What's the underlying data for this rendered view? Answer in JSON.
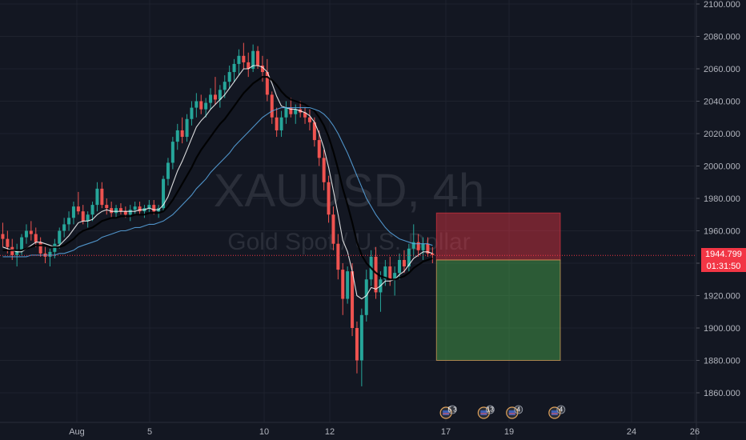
{
  "chart_data": {
    "type": "candlestick",
    "watermark": {
      "symbol": "XAUUSD, 4h",
      "description": "Gold Spot / U.S. Dollar"
    },
    "price_axis": {
      "ylim": [
        1840,
        2100
      ],
      "ticks": [
        1860,
        1880,
        1900,
        1920,
        1940,
        1960,
        1980,
        2000,
        2020,
        2040,
        2060,
        2080,
        2100
      ],
      "tick_labels": [
        "1860.000",
        "1880.000",
        "1900.000",
        "1920.000",
        "1940.000",
        "1960.000",
        "1980.000",
        "2000.000",
        "2020.000",
        "2040.000",
        "2060.000",
        "2080.000",
        "2100.000"
      ]
    },
    "time_axis": {
      "ticks": [
        {
          "x": 4,
          "label": "Aug"
        },
        {
          "x": 5,
          "label": "5"
        },
        {
          "x": 10,
          "label": "10"
        },
        {
          "x": 12,
          "label": "12"
        },
        {
          "x": 17,
          "label": "17"
        },
        {
          "x": 19,
          "label": "19"
        },
        {
          "x": 24,
          "label": "24"
        },
        {
          "x": 26,
          "label": "26"
        }
      ]
    },
    "current_price": {
      "value": 1944.799,
      "label": "1944.799",
      "countdown": "01:31:50"
    },
    "candles": [
      [
        1958,
        1965,
        1950,
        1955
      ],
      [
        1955,
        1960,
        1946,
        1950
      ],
      [
        1950,
        1955,
        1942,
        1945
      ],
      [
        1945,
        1952,
        1938,
        1948
      ],
      [
        1948,
        1958,
        1945,
        1956
      ],
      [
        1956,
        1964,
        1952,
        1960
      ],
      [
        1960,
        1966,
        1954,
        1958
      ],
      [
        1958,
        1962,
        1950,
        1953
      ],
      [
        1953,
        1956,
        1944,
        1946
      ],
      [
        1946,
        1950,
        1940,
        1944
      ],
      [
        1944,
        1949,
        1938,
        1947
      ],
      [
        1947,
        1955,
        1943,
        1952
      ],
      [
        1952,
        1962,
        1949,
        1960
      ],
      [
        1960,
        1968,
        1956,
        1964
      ],
      [
        1964,
        1972,
        1960,
        1968
      ],
      [
        1968,
        1978,
        1964,
        1975
      ],
      [
        1975,
        1984,
        1970,
        1972
      ],
      [
        1972,
        1976,
        1964,
        1966
      ],
      [
        1966,
        1972,
        1962,
        1970
      ],
      [
        1970,
        1978,
        1966,
        1976
      ],
      [
        1976,
        1990,
        1972,
        1986
      ],
      [
        1986,
        1990,
        1974,
        1976
      ],
      [
        1976,
        1980,
        1970,
        1974
      ],
      [
        1974,
        1978,
        1968,
        1971
      ],
      [
        1971,
        1976,
        1968,
        1974
      ],
      [
        1974,
        1977,
        1970,
        1972
      ],
      [
        1972,
        1975,
        1968,
        1970
      ],
      [
        1970,
        1976,
        1966,
        1973
      ],
      [
        1973,
        1978,
        1970,
        1975
      ],
      [
        1975,
        1978,
        1970,
        1972
      ],
      [
        1972,
        1976,
        1968,
        1974
      ],
      [
        1974,
        1979,
        1971,
        1976
      ],
      [
        1976,
        1979,
        1970,
        1972
      ],
      [
        1972,
        1976,
        1968,
        1974
      ],
      [
        1974,
        1994,
        1972,
        1992
      ],
      [
        1992,
        2005,
        1988,
        2002
      ],
      [
        2002,
        2018,
        1998,
        2015
      ],
      [
        2015,
        2026,
        2010,
        2022
      ],
      [
        2022,
        2030,
        2014,
        2018
      ],
      [
        2018,
        2032,
        2015,
        2029
      ],
      [
        2029,
        2040,
        2025,
        2036
      ],
      [
        2036,
        2045,
        2030,
        2040
      ],
      [
        2040,
        2044,
        2032,
        2035
      ],
      [
        2035,
        2042,
        2030,
        2039
      ],
      [
        2039,
        2048,
        2035,
        2044
      ],
      [
        2044,
        2055,
        2038,
        2041
      ],
      [
        2041,
        2050,
        2036,
        2047
      ],
      [
        2047,
        2056,
        2042,
        2052
      ],
      [
        2052,
        2062,
        2048,
        2058
      ],
      [
        2058,
        2066,
        2052,
        2063
      ],
      [
        2063,
        2072,
        2056,
        2068
      ],
      [
        2068,
        2076,
        2060,
        2064
      ],
      [
        2064,
        2070,
        2055,
        2060
      ],
      [
        2060,
        2075,
        2058,
        2071
      ],
      [
        2071,
        2074,
        2060,
        2062
      ],
      [
        2062,
        2068,
        2052,
        2058
      ],
      [
        2058,
        2066,
        2040,
        2044
      ],
      [
        2044,
        2046,
        2026,
        2030
      ],
      [
        2030,
        2036,
        2018,
        2022
      ],
      [
        2022,
        2034,
        2018,
        2030
      ],
      [
        2030,
        2040,
        2026,
        2036
      ],
      [
        2036,
        2042,
        2030,
        2032
      ],
      [
        2032,
        2038,
        2026,
        2035
      ],
      [
        2035,
        2040,
        2030,
        2033
      ],
      [
        2033,
        2036,
        2026,
        2030
      ],
      [
        2030,
        2035,
        2022,
        2027
      ],
      [
        2027,
        2030,
        2012,
        2016
      ],
      [
        2016,
        2022,
        2000,
        2005
      ],
      [
        2005,
        2010,
        1985,
        1990
      ],
      [
        1990,
        1994,
        1965,
        1970
      ],
      [
        1970,
        1975,
        1948,
        1952
      ],
      [
        1952,
        1958,
        1930,
        1936
      ],
      [
        1936,
        1940,
        1908,
        1918
      ],
      [
        1918,
        1938,
        1915,
        1935
      ],
      [
        1935,
        1940,
        1895,
        1900
      ],
      [
        1900,
        1904,
        1872,
        1880
      ],
      [
        1880,
        1912,
        1864,
        1908
      ],
      [
        1908,
        1936,
        1904,
        1930
      ],
      [
        1930,
        1948,
        1926,
        1944
      ],
      [
        1944,
        1950,
        1918,
        1922
      ],
      [
        1922,
        1935,
        1910,
        1930
      ],
      [
        1930,
        1942,
        1926,
        1938
      ],
      [
        1938,
        1944,
        1926,
        1930
      ],
      [
        1930,
        1938,
        1920,
        1934
      ],
      [
        1934,
        1946,
        1930,
        1942
      ],
      [
        1942,
        1948,
        1934,
        1938
      ],
      [
        1938,
        1952,
        1935,
        1949
      ],
      [
        1949,
        1964,
        1944,
        1953
      ],
      [
        1953,
        1958,
        1944,
        1948
      ],
      [
        1948,
        1956,
        1942,
        1952
      ],
      [
        1952,
        1956,
        1944,
        1946
      ],
      [
        1946,
        1950,
        1940,
        1945
      ]
    ],
    "moving_averages": [
      {
        "color": "#ffffff",
        "values": [
          1950,
          1949,
          1948,
          1947,
          1947,
          1949,
          1951,
          1953,
          1953,
          1952,
          1951,
          1950,
          1951,
          1954,
          1957,
          1961,
          1965,
          1966,
          1966,
          1967,
          1970,
          1972,
          1973,
          1972,
          1972,
          1972,
          1972,
          1972,
          1972,
          1973,
          1973,
          1974,
          1973,
          1973,
          1976,
          1981,
          1989,
          1997,
          2003,
          2010,
          2017,
          2024,
          2028,
          2031,
          2035,
          2038,
          2041,
          2044,
          2048,
          2052,
          2056,
          2060,
          2060,
          2062,
          2062,
          2061,
          2058,
          2051,
          2043,
          2037,
          2036,
          2035,
          2035,
          2034,
          2033,
          2031,
          2027,
          2020,
          2011,
          1999,
          1985,
          1970,
          1954,
          1947,
          1935,
          1920,
          1918,
          1920,
          1925,
          1924,
          1926,
          1929,
          1929,
          1930,
          1933,
          1935,
          1939,
          1943,
          1945,
          1947,
          1947,
          1946
        ]
      },
      {
        "color": "#000000",
        "values": [
          1948,
          1948,
          1948,
          1948,
          1948,
          1949,
          1950,
          1951,
          1951,
          1951,
          1950,
          1950,
          1950,
          1951,
          1953,
          1955,
          1958,
          1960,
          1961,
          1962,
          1964,
          1966,
          1967,
          1968,
          1968,
          1969,
          1969,
          1969,
          1970,
          1970,
          1970,
          1971,
          1971,
          1971,
          1972,
          1975,
          1979,
          1984,
          1989,
          1994,
          1999,
          2005,
          2010,
          2014,
          2018,
          2022,
          2026,
          2029,
          2033,
          2037,
          2041,
          2045,
          2048,
          2051,
          2053,
          2055,
          2055,
          2053,
          2050,
          2046,
          2043,
          2041,
          2040,
          2039,
          2038,
          2036,
          2034,
          2030,
          2025,
          2018,
          2009,
          1998,
          1986,
          1976,
          1965,
          1953,
          1945,
          1940,
          1937,
          1934,
          1932,
          1931,
          1930,
          1930,
          1931,
          1932,
          1934,
          1937,
          1939,
          1941,
          1942,
          1943
        ]
      },
      {
        "color": "#5aa9e6",
        "values": [
          1944,
          1944,
          1944,
          1944,
          1944,
          1944,
          1945,
          1945,
          1945,
          1945,
          1945,
          1945,
          1946,
          1946,
          1947,
          1948,
          1950,
          1951,
          1952,
          1953,
          1954,
          1956,
          1957,
          1958,
          1959,
          1960,
          1960,
          1961,
          1962,
          1962,
          1963,
          1964,
          1964,
          1965,
          1966,
          1968,
          1970,
          1973,
          1976,
          1979,
          1982,
          1986,
          1989,
          1992,
          1996,
          1999,
          2002,
          2005,
          2008,
          2012,
          2015,
          2018,
          2021,
          2024,
          2027,
          2030,
          2032,
          2034,
          2035,
          2036,
          2036,
          2036,
          2036,
          2036,
          2036,
          2036,
          2035,
          2034,
          2032,
          2029,
          2025,
          2020,
          2014,
          2008,
          2001,
          1994,
          1987,
          1980,
          1975,
          1970,
          1966,
          1962,
          1959,
          1957,
          1955,
          1954,
          1953,
          1952,
          1952,
          1952,
          1952,
          1951
        ]
      }
    ],
    "position": {
      "entry": 1942,
      "stop": 1971,
      "target": 1880,
      "start_index": 92,
      "end_index": 120
    },
    "events": [
      {
        "index": 93,
        "count": "5 3"
      },
      {
        "index": 101,
        "count": "13"
      },
      {
        "index": 107,
        "count": "4"
      },
      {
        "index": 116,
        "count": "4"
      }
    ],
    "colors": {
      "background": "#131722",
      "grid": "#1e222d",
      "up": "#26a69a",
      "down": "#ef5350",
      "price_line": "#f23645",
      "stop_zone": "#f23645",
      "target_zone": "#4caf50",
      "axis_text": "#b2b5be"
    }
  }
}
